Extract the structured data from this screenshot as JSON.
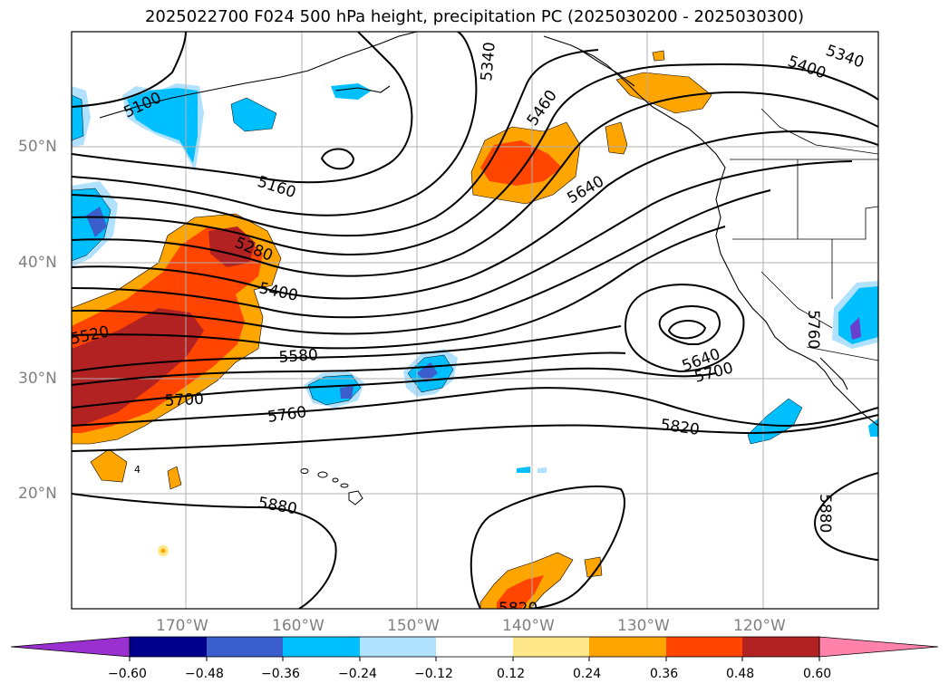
{
  "title": "2025022700 F024 500 hPa height, precipitation PC (2025030200 - 2025030300)",
  "lat_labels": [
    "50°N",
    "40°N",
    "30°N",
    "20°N"
  ],
  "lon_labels": [
    "170°W",
    "160°W",
    "150°W",
    "140°W",
    "130°W",
    "120°W"
  ],
  "contour_labels": [
    "5100",
    "5160",
    "5280",
    "5340",
    "5400",
    "5460",
    "5520",
    "5580",
    "5640",
    "5700",
    "5760",
    "5820",
    "5880",
    "5820",
    "5340",
    "5400",
    "5640",
    "5700",
    "5760",
    "5880",
    "4"
  ],
  "colorbar": {
    "ticks": [
      "−0.60",
      "−0.48",
      "−0.36",
      "−0.24",
      "−0.12",
      "0.12",
      "0.24",
      "0.36",
      "0.48",
      "0.60"
    ],
    "colors": [
      "#9b30d0",
      "#00008b",
      "#3a5fcd",
      "#00bfff",
      "#b0e2ff",
      "#ffffff",
      "#ffe88a",
      "#ffa500",
      "#ff4500",
      "#b22222",
      "#ff82ab"
    ]
  },
  "shading_colors": {
    "neg_light": "#b0e2ff",
    "neg_mid": "#00bfff",
    "neg_dark": "#3a5fcd",
    "neg_darkest": "#6a3fd0",
    "pos_light": "#ffe88a",
    "pos_mid": "#ffa500",
    "pos_dark": "#ff4500",
    "pos_darkest": "#b22222"
  }
}
